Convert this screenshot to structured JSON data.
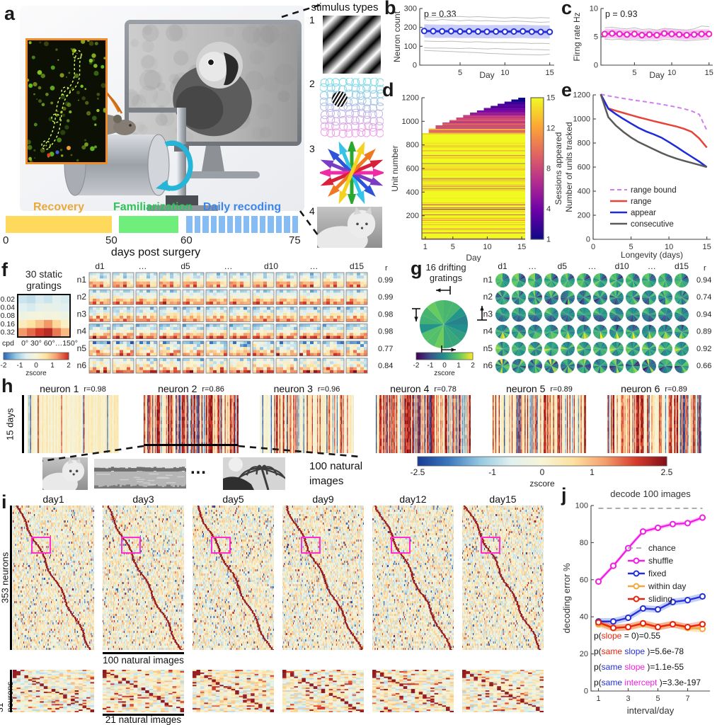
{
  "panel_labels": {
    "a": "a",
    "b": "b",
    "c": "c",
    "d": "d",
    "e": "e",
    "f": "f",
    "g": "g",
    "h": "h",
    "i": "i",
    "j": "j"
  },
  "panel_a": {
    "timeline": {
      "phases": [
        {
          "label": "Recovery",
          "bar_color": "#ffd95c",
          "label_color": "#e9a93c",
          "segments": 0
        },
        {
          "label": "Familiarization",
          "bar_color": "#70ee7c",
          "label_color": "#2cc45a",
          "segments": 0
        },
        {
          "label": "Daily recoding",
          "bar_color": "#85bcf4",
          "label_color": "#3c86ea",
          "segments": 14
        }
      ],
      "ticks": [
        "0",
        "50",
        "60",
        "75"
      ],
      "xlabel": "days post surgery"
    }
  },
  "stimulus_panel": {
    "title": "stimulus types",
    "items": [
      {
        "num": "1"
      },
      {
        "num": "2"
      },
      {
        "num": "3"
      },
      {
        "num": "4"
      }
    ]
  },
  "chart_data": {
    "b": {
      "id": "b",
      "type": "line",
      "title_inside": "p = 0.33",
      "ylabel": "Neuron count",
      "xlabel": "Day",
      "xlim": [
        0.5,
        15.5
      ],
      "ylim": [
        0,
        300
      ],
      "yticks": [
        0,
        100,
        200,
        300
      ],
      "xticks": [
        5,
        10,
        15
      ],
      "x": [
        1,
        2,
        3,
        4,
        5,
        6,
        7,
        8,
        9,
        10,
        11,
        12,
        13,
        14,
        15
      ],
      "series": [
        {
          "name": "mean",
          "color": "#2230d9",
          "marker": "o",
          "width": 3,
          "band": 35,
          "band_color": "rgba(90,100,230,0.32)",
          "values": [
            181,
            180,
            179,
            180,
            178,
            179,
            178,
            177,
            178,
            177,
            178,
            179,
            177,
            176,
            176
          ]
        },
        {
          "color": "#bdbdbd",
          "width": 1,
          "values": [
            253,
            255,
            252,
            256,
            258,
            255,
            257,
            254,
            252,
            250,
            253,
            251,
            249,
            252,
            250
          ]
        },
        {
          "color": "#bdbdbd",
          "width": 1,
          "values": [
            240,
            236,
            242,
            238,
            235,
            238,
            234,
            236,
            233,
            231,
            234,
            232,
            229,
            227,
            229
          ]
        },
        {
          "color": "#bdbdbd",
          "width": 1,
          "values": [
            128,
            126,
            125,
            127,
            124,
            122,
            124,
            121,
            119,
            120,
            118,
            117,
            115,
            116,
            114
          ]
        },
        {
          "color": "#bdbdbd",
          "width": 1,
          "values": [
            92,
            90,
            91,
            89,
            88,
            90,
            87,
            86,
            88,
            85,
            84,
            86,
            83,
            82,
            80
          ]
        },
        {
          "color": "#bdbdbd",
          "width": 1,
          "values": [
            78,
            76,
            74,
            72,
            70,
            68,
            66,
            63,
            61,
            59,
            57,
            56,
            55,
            54,
            58
          ]
        }
      ]
    },
    "c": {
      "id": "c",
      "type": "line",
      "title_inside": "p = 0.93",
      "ylabel": "Firng rate Hz",
      "xlabel": "Day",
      "xlim": [
        0.5,
        15.5
      ],
      "ylim": [
        0,
        10
      ],
      "yticks": [
        0,
        5,
        10
      ],
      "xticks": [
        5,
        10,
        15
      ],
      "x": [
        1,
        2,
        3,
        4,
        5,
        6,
        7,
        8,
        9,
        10,
        11,
        12,
        13,
        14,
        15
      ],
      "series": [
        {
          "name": "mean",
          "color": "#ee22cc",
          "marker": "o",
          "width": 3,
          "band": 0.85,
          "band_color": "rgba(240,70,220,0.3)",
          "values": [
            5.5,
            5.6,
            5.5,
            5.4,
            5.5,
            5.3,
            5.4,
            5.3,
            5.6,
            5.5,
            5.4,
            5.3,
            5.4,
            5.5,
            5.5
          ]
        },
        {
          "color": "#bdbdbd",
          "width": 1,
          "values": [
            6.6,
            6.7,
            6.5,
            6.4,
            6.6,
            6.3,
            6.4,
            6.2,
            6.5,
            6.4,
            6.3,
            6.2,
            6.4,
            6.9,
            6.8
          ]
        },
        {
          "color": "#bdbdbd",
          "width": 1,
          "values": [
            5.9,
            6.0,
            5.8,
            5.9,
            6.1,
            5.8,
            5.9,
            5.7,
            6.0,
            5.9,
            5.8,
            5.7,
            5.9,
            6.0,
            5.9
          ]
        },
        {
          "color": "#bdbdbd",
          "width": 1,
          "values": [
            4.6,
            4.5,
            4.6,
            4.4,
            4.5,
            4.3,
            4.4,
            4.3,
            4.6,
            4.5,
            4.4,
            4.3,
            4.4,
            4.5,
            4.6
          ]
        }
      ]
    },
    "d": {
      "id": "d",
      "type": "heatmap",
      "ylabel": "Unit number",
      "xlabel": "Day",
      "yticks": [
        200,
        400,
        600,
        800,
        1000,
        1200
      ],
      "xticks": [
        1,
        5,
        10,
        15
      ],
      "days": 15,
      "total_units": 1200,
      "stable_units": 900,
      "colorbar": {
        "label": "Sessions appeared",
        "ticks": [
          1,
          4,
          8,
          12,
          15
        ],
        "palette": "plasma"
      }
    },
    "e": {
      "id": "e",
      "type": "line",
      "ylabel": "Number of units tracked",
      "xlabel": "Longevity (days)",
      "xlim": [
        0,
        15.5
      ],
      "ylim": [
        0,
        1200
      ],
      "yticks": [
        0,
        200,
        400,
        600,
        800,
        1000,
        1200
      ],
      "xticks": [
        0,
        5,
        10,
        15
      ],
      "x": [
        1,
        2,
        3,
        4,
        5,
        6,
        7,
        8,
        9,
        10,
        11,
        12,
        13,
        14,
        15
      ],
      "series": [
        {
          "name": "range bound",
          "color": "#cf7ef2",
          "dash": [
            6,
            4
          ],
          "width": 2,
          "values": [
            1205,
            1192,
            1181,
            1170,
            1160,
            1151,
            1142,
            1132,
            1122,
            1111,
            1098,
            1084,
            1066,
            1038,
            905
          ]
        },
        {
          "name": "range",
          "color": "#e84338",
          "width": 2.5,
          "values": [
            1205,
            1088,
            1068,
            1050,
            1032,
            1014,
            998,
            982,
            967,
            952,
            937,
            918,
            893,
            838,
            762
          ]
        },
        {
          "name": "appear",
          "color": "#1f2bd8",
          "width": 2.5,
          "values": [
            1205,
            1085,
            1040,
            1000,
            962,
            926,
            896,
            872,
            845,
            808,
            768,
            726,
            686,
            646,
            600
          ]
        },
        {
          "name": "consecutive",
          "color": "#5a5a5a",
          "width": 2.5,
          "values": [
            1205,
            1015,
            945,
            892,
            846,
            808,
            778,
            748,
            718,
            692,
            670,
            652,
            635,
            618,
            600
          ]
        }
      ]
    },
    "f": {
      "id": "f",
      "type": "heatmap-grid",
      "title_lines": [
        "30 static",
        "gratings"
      ],
      "example": {
        "row_labels": [
          "0.02",
          "0.04",
          "0.08",
          "0.16",
          "0.32"
        ],
        "row_axis": "cpd",
        "col_axis": "0° 30° 60°…150°",
        "values": [
          [
            -0.8,
            -0.9,
            -0.7,
            -0.8,
            -0.6,
            -0.7
          ],
          [
            -0.6,
            -0.7,
            -0.5,
            -0.4,
            -0.5,
            -0.6
          ],
          [
            -0.3,
            -0.2,
            -0.1,
            -0.2,
            -0.1,
            -0.3
          ],
          [
            0.3,
            0.6,
            0.9,
            1.3,
            0.7,
            0.2
          ],
          [
            1.3,
            1.6,
            1.9,
            2.1,
            1.5,
            1.0
          ]
        ]
      },
      "colorbar": {
        "ticks": [
          -2,
          -1,
          0,
          1,
          2
        ],
        "label": "zscore",
        "palette": "rdbu"
      },
      "row_labels": [
        "n1",
        "n2",
        "n3",
        "n4",
        "n5",
        "n6"
      ],
      "col_headers": [
        "d1",
        "…",
        "d5",
        "…",
        "d10",
        "…",
        "d15"
      ],
      "n_day_cols": 12,
      "r_header": "r",
      "r_values": [
        "0.99",
        "0.99",
        "0.98",
        "0.98",
        "0.77",
        "0.84"
      ],
      "noise_by_row": [
        0.25,
        0.25,
        0.3,
        0.3,
        0.85,
        0.65
      ]
    },
    "g": {
      "id": "g",
      "type": "pie-grid",
      "title_lines": [
        "16 drifting",
        "gratings"
      ],
      "colorbar": {
        "ticks": [
          -2,
          -1,
          0,
          1,
          2
        ],
        "label": "zscore",
        "palette": "viridis"
      },
      "row_labels": [
        "n1",
        "n2",
        "n3",
        "n4",
        "n5",
        "n6"
      ],
      "col_headers": [
        "d1",
        "…",
        "d5",
        "…",
        "d10",
        "…",
        "d15"
      ],
      "n_day_cols": 12,
      "wedges": 16,
      "r_header": "r",
      "r_values": [
        "0.94",
        "0.74",
        "0.94",
        "0.89",
        "0.92",
        "0.66"
      ],
      "noise_by_row": [
        0.2,
        0.5,
        0.2,
        0.3,
        0.25,
        0.6
      ]
    },
    "h": {
      "id": "h",
      "type": "heatmap-strips",
      "side_label": "15 days",
      "dots": "…",
      "images_label": "100 natural images",
      "neurons": [
        {
          "label": "neuron 1",
          "r": "r=0.98",
          "intensity": 0.35,
          "sparsity": 0.9
        },
        {
          "label": "neuron 2",
          "r": "r=0.86",
          "intensity": 1.0,
          "sparsity": 0.42
        },
        {
          "label": "neuron 3",
          "r": "r=0.96",
          "intensity": 0.6,
          "sparsity": 0.78
        },
        {
          "label": "neuron 4",
          "r": "r=0.78",
          "intensity": 0.95,
          "sparsity": 0.3
        },
        {
          "label": "neuron 5",
          "r": "r=0.89",
          "intensity": 0.7,
          "sparsity": 0.62
        },
        {
          "label": "neuron 6",
          "r": "r=0.89",
          "intensity": 0.8,
          "sparsity": 0.5
        }
      ],
      "colorbar": {
        "min": -2.5,
        "max": 2.5,
        "ticks": [
          -2.5,
          -1,
          0,
          1,
          2.5
        ],
        "label": "zscore",
        "palette": "rdbu"
      }
    },
    "i": {
      "id": "i",
      "type": "matrix-row",
      "days": [
        "day1",
        "day3",
        "day5",
        "day9",
        "day12",
        "day15"
      ],
      "big_label": "353 neurons",
      "big_xlabel": "100 natural images",
      "small_label": "31 neurons",
      "small_xlabel": "21 natural images",
      "big_rows": 353,
      "big_cols": 100,
      "small_rows": 31,
      "small_cols": 21,
      "box_color": "#ff2ed1"
    },
    "j": {
      "id": "j",
      "type": "line",
      "title": "decode 100 images",
      "ylabel": "decoding error %",
      "xlabel": "interval/day",
      "xlim": [
        0.5,
        8.5
      ],
      "ylim": [
        0,
        100
      ],
      "yticks": [
        0,
        20,
        40,
        60,
        80,
        100
      ],
      "xticks": [
        1,
        3,
        5,
        7
      ],
      "x": [
        1,
        2,
        3,
        4,
        5,
        6,
        7,
        8
      ],
      "series": [
        {
          "name": "chance",
          "color": "#999999",
          "dash": [
            7,
            5
          ],
          "width": 1.6,
          "values": [
            98.5,
            98.5,
            98.5,
            98.5,
            98.5,
            98.5,
            98.5,
            98.5
          ]
        },
        {
          "name": "shuffle",
          "color": "#f21fe3",
          "marker": "o",
          "width": 2.4,
          "band": 1.2,
          "band_color": "rgba(242,31,227,0.22)",
          "values": [
            59,
            67.5,
            77,
            86,
            88,
            90,
            90.5,
            93.5
          ]
        },
        {
          "name": "fixed",
          "color": "#2430d8",
          "marker": "o",
          "width": 2.4,
          "band": 1.8,
          "band_color": "rgba(60,90,230,0.3)",
          "values": [
            37.5,
            37.5,
            39.5,
            44.5,
            44,
            48,
            49,
            51
          ]
        },
        {
          "name": "within day",
          "color": "#f2a93b",
          "marker": "o",
          "width": 2.4,
          "band": 1.8,
          "band_color": "rgba(245,180,70,0.35)",
          "values": [
            36,
            34,
            34.5,
            36,
            34.5,
            36,
            34,
            33.5
          ]
        },
        {
          "name": "sliding",
          "color": "#e8250c",
          "marker": "o",
          "width": 2.4,
          "band": 1.8,
          "band_color": "rgba(235,60,30,0.3)",
          "values": [
            37,
            34,
            34.5,
            36.5,
            34.5,
            36,
            34.5,
            36
          ]
        }
      ],
      "annotations": [
        [
          {
            "t": "p("
          },
          {
            "t": "slope",
            "c": "#e8250c"
          },
          {
            "t": " = 0)=0.55"
          }
        ],
        [
          {
            "t": "p("
          },
          {
            "t": "same",
            "c": "#e8250c"
          },
          {
            "t": " "
          },
          {
            "t": "slope",
            "c": "#2430d8"
          },
          {
            "t": " )=5.6e-78"
          }
        ],
        [
          {
            "t": "p("
          },
          {
            "t": "same",
            "c": "#2430d8"
          },
          {
            "t": " "
          },
          {
            "t": "slope",
            "c": "#f21fe3"
          },
          {
            "t": " )=1.1e-55"
          }
        ],
        [
          {
            "t": "p("
          },
          {
            "t": "same",
            "c": "#2430d8"
          },
          {
            "t": " "
          },
          {
            "t": "intercept",
            "c": "#f21fe3"
          },
          {
            "t": " )=3.3e-197"
          }
        ]
      ]
    }
  }
}
